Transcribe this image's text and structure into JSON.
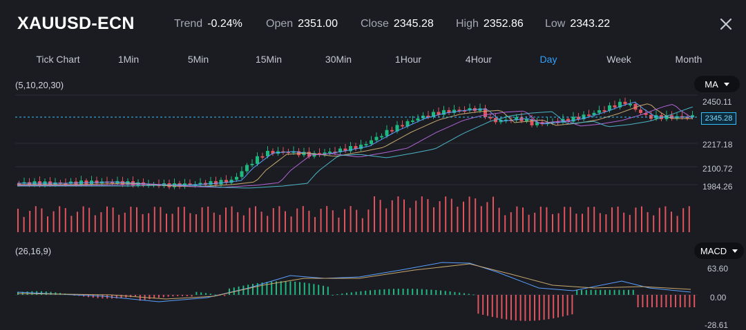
{
  "header": {
    "symbol": "XAUUSD-ECN",
    "trend_label": "Trend",
    "trend_value": "-0.24%",
    "open_label": "Open",
    "open_value": "2351.00",
    "close_label": "Close",
    "close_value": "2345.28",
    "high_label": "High",
    "high_value": "2352.86",
    "low_label": "Low",
    "low_value": "2343.22",
    "close_icon": "close-x-icon"
  },
  "tabs": [
    {
      "label": "Tick Chart",
      "active": false
    },
    {
      "label": "1Min",
      "active": false
    },
    {
      "label": "5Min",
      "active": false
    },
    {
      "label": "15Min",
      "active": false
    },
    {
      "label": "30Min",
      "active": false
    },
    {
      "label": "1Hour",
      "active": false
    },
    {
      "label": "4Hour",
      "active": false
    },
    {
      "label": "Day",
      "active": true
    },
    {
      "label": "Week",
      "active": false
    },
    {
      "label": "Month",
      "active": false
    }
  ],
  "main_chart": {
    "params": "(5,10,20,30)",
    "indicator": "MA",
    "price_axis": [
      "2450.11",
      "2217.18",
      "2100.72",
      "1984.26"
    ],
    "last_price_tag": "2345.28"
  },
  "macd_chart": {
    "params": "(26,16,9)",
    "indicator": "MACD",
    "axis": [
      "63.60",
      "0.00",
      "-28.61"
    ]
  },
  "colors": {
    "background": "#1b1c22",
    "up": "#1fb87f",
    "down": "#e0545f",
    "active_tab": "#2fa3ff",
    "price_line": "#31c3ff",
    "ma5": "#5aa0ff",
    "ma10": "#c9a96e",
    "ma20": "#b265d8",
    "ma30": "#4bb7c9"
  }
}
